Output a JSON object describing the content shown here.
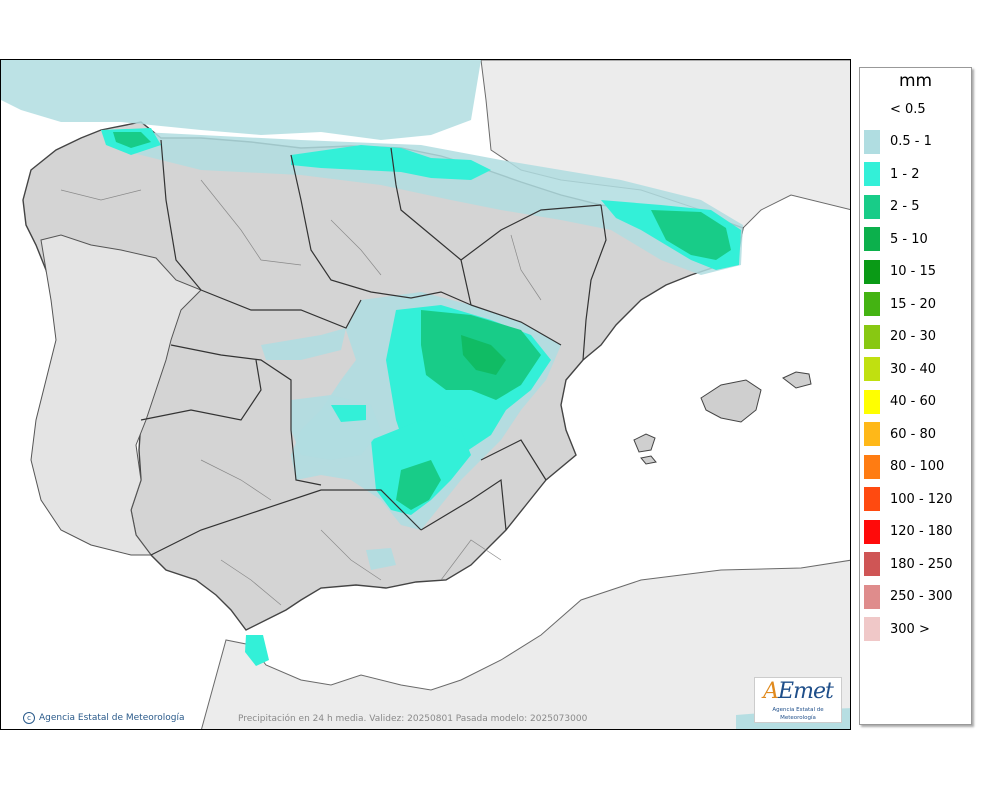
{
  "map": {
    "credit": "Agencia Estatal de Meteorología",
    "caption": "Precipitación en 24 h media. Validez: 20250801 Pasada modelo: 2025073000",
    "logo_text": "AEmet",
    "logo_subtitle": "Agencia Estatal de Meteorología"
  },
  "legend": {
    "unit": "mm",
    "entries": [
      {
        "label": "< 0.5",
        "color": "#ffffff"
      },
      {
        "label": "0.5 - 1",
        "color": "#b0dde1"
      },
      {
        "label": "1 - 2",
        "color": "#33f0d8"
      },
      {
        "label": "2 - 5",
        "color": "#18cc88"
      },
      {
        "label": "5 - 10",
        "color": "#0cb04c"
      },
      {
        "label": "10 - 15",
        "color": "#0a9a16"
      },
      {
        "label": "15 - 20",
        "color": "#44b312"
      },
      {
        "label": "20 - 30",
        "color": "#88c812"
      },
      {
        "label": "30 - 40",
        "color": "#c0e010"
      },
      {
        "label": "40 - 60",
        "color": "#ffff00"
      },
      {
        "label": "60 - 80",
        "color": "#ffb818"
      },
      {
        "label": "80 - 100",
        "color": "#ff7c12"
      },
      {
        "label": "100 - 120",
        "color": "#ff4a10"
      },
      {
        "label": "120 - 180",
        "color": "#ff0a0a"
      },
      {
        "label": "180 - 250",
        "color": "#cf5555"
      },
      {
        "label": "250 - 300",
        "color": "#df8c8c"
      },
      {
        "label": "300 >",
        "color": "#f0c8c8"
      }
    ]
  }
}
